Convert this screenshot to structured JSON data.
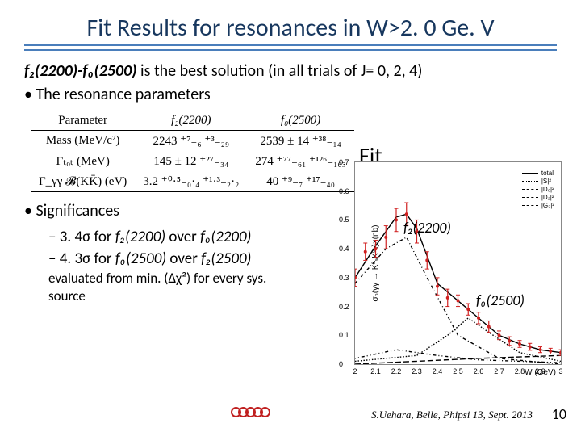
{
  "title": "Fit Results for resonances in W>2. 0 Ge. V",
  "intro_prefix_html": "f₂(2200)-f₀(2500)",
  "intro_rest": " is the best solution (in all  trials of J= 0, 2, 4)",
  "bullet_params": "The resonance parameters",
  "param_table": {
    "columns": [
      "Parameter",
      "f₂(2200)",
      "f₀(2500)"
    ],
    "rows": [
      [
        "Mass (MeV/c²)",
        "2243 ⁺⁷₋₆ ⁺³₋₂₉",
        "2539 ± 14 ⁺³⁸₋₁₄"
      ],
      [
        "Γₜₒₜ (MeV)",
        "145 ± 12 ⁺²⁷₋₃₄",
        "274 ⁺⁷⁷₋₆₁ ⁺¹²⁶₋₁₆₃"
      ],
      [
        "Γ_γγ 𝓑(KK̄) (eV)",
        "3.2 ⁺⁰·⁵₋₀·₄ ⁺¹·³₋₂·₂",
        "40 ⁺⁹₋₇ ⁺¹⁷₋₄₀"
      ]
    ]
  },
  "fit_label": "Fit",
  "sig_title": "Significances",
  "sig_line1_pre": "3. 4σ for ",
  "sig_line1_resA": "f₂(2200)",
  "sig_line1_mid": " over ",
  "sig_line1_resB": "f₀(2200)",
  "sig_line2_pre": "4. 3σ for ",
  "sig_line2_resA": "f₀(2500)",
  "sig_line2_mid": " over ",
  "sig_line2_resB": "f₂(2500)",
  "sig_note_a": "evaluated from min. (Δχ²)  for every sys.",
  "sig_note_b": "source",
  "chart": {
    "xmin": 2.0,
    "xmax": 3.0,
    "ymin": 0.0,
    "ymax": 0.7,
    "xticks": [
      "2",
      "2.1",
      "2.2",
      "2.3",
      "2.4",
      "2.5",
      "2.6",
      "2.7",
      "2.8",
      "2.9",
      "3"
    ],
    "yticks": [
      "0",
      "0.1",
      "0.2",
      "0.3",
      "0.4",
      "0.5",
      "0.6",
      "0.7"
    ],
    "xlabel": "W (GeV)",
    "ylabel": "σ₀(γγ → K⁰ₛK⁰ₛ)×(nb)",
    "legend": [
      {
        "label": "total",
        "style": "solid",
        "color": "#000"
      },
      {
        "label": "|S|²",
        "style": "dotted",
        "color": "#000"
      },
      {
        "label": "|D₀|²",
        "style": "dash1",
        "color": "#000"
      },
      {
        "label": "|D₂|²",
        "style": "dash2",
        "color": "#000"
      },
      {
        "label": "|G₂|²",
        "style": "longdash",
        "color": "#000"
      }
    ],
    "data_points": [
      {
        "x": 2.0,
        "y": 0.3,
        "ey": 0.03
      },
      {
        "x": 2.05,
        "y": 0.39,
        "ey": 0.03
      },
      {
        "x": 2.1,
        "y": 0.4,
        "ey": 0.03
      },
      {
        "x": 2.15,
        "y": 0.44,
        "ey": 0.04
      },
      {
        "x": 2.2,
        "y": 0.5,
        "ey": 0.04
      },
      {
        "x": 2.25,
        "y": 0.52,
        "ey": 0.04
      },
      {
        "x": 2.3,
        "y": 0.46,
        "ey": 0.04
      },
      {
        "x": 2.35,
        "y": 0.36,
        "ey": 0.03
      },
      {
        "x": 2.4,
        "y": 0.27,
        "ey": 0.03
      },
      {
        "x": 2.45,
        "y": 0.23,
        "ey": 0.03
      },
      {
        "x": 2.5,
        "y": 0.22,
        "ey": 0.02
      },
      {
        "x": 2.55,
        "y": 0.19,
        "ey": 0.02
      },
      {
        "x": 2.6,
        "y": 0.16,
        "ey": 0.02
      },
      {
        "x": 2.65,
        "y": 0.13,
        "ey": 0.02
      },
      {
        "x": 2.7,
        "y": 0.1,
        "ey": 0.015
      },
      {
        "x": 2.75,
        "y": 0.08,
        "ey": 0.015
      },
      {
        "x": 2.8,
        "y": 0.07,
        "ey": 0.012
      },
      {
        "x": 2.85,
        "y": 0.06,
        "ey": 0.012
      },
      {
        "x": 2.9,
        "y": 0.05,
        "ey": 0.01
      },
      {
        "x": 2.95,
        "y": 0.045,
        "ey": 0.01
      },
      {
        "x": 3.0,
        "y": 0.04,
        "ey": 0.01
      }
    ],
    "curve_total": [
      {
        "x": 2.0,
        "y": 0.3
      },
      {
        "x": 2.1,
        "y": 0.41
      },
      {
        "x": 2.2,
        "y": 0.51
      },
      {
        "x": 2.25,
        "y": 0.52
      },
      {
        "x": 2.3,
        "y": 0.47
      },
      {
        "x": 2.4,
        "y": 0.28
      },
      {
        "x": 2.5,
        "y": 0.22
      },
      {
        "x": 2.6,
        "y": 0.16
      },
      {
        "x": 2.7,
        "y": 0.1
      },
      {
        "x": 2.8,
        "y": 0.07
      },
      {
        "x": 2.9,
        "y": 0.05
      },
      {
        "x": 3.0,
        "y": 0.04
      }
    ],
    "curve_S": [
      {
        "x": 2.0,
        "y": 0.01
      },
      {
        "x": 2.3,
        "y": 0.03
      },
      {
        "x": 2.45,
        "y": 0.1
      },
      {
        "x": 2.55,
        "y": 0.16
      },
      {
        "x": 2.65,
        "y": 0.11
      },
      {
        "x": 2.8,
        "y": 0.04
      },
      {
        "x": 3.0,
        "y": 0.01
      }
    ],
    "curve_D0": [
      {
        "x": 2.0,
        "y": 0.28
      },
      {
        "x": 2.15,
        "y": 0.4
      },
      {
        "x": 2.25,
        "y": 0.44
      },
      {
        "x": 2.35,
        "y": 0.3
      },
      {
        "x": 2.5,
        "y": 0.1
      },
      {
        "x": 2.7,
        "y": 0.02
      },
      {
        "x": 3.0,
        "y": 0.0
      }
    ],
    "curve_D2": [
      {
        "x": 2.0,
        "y": 0.02
      },
      {
        "x": 2.2,
        "y": 0.05
      },
      {
        "x": 2.4,
        "y": 0.03
      },
      {
        "x": 2.6,
        "y": 0.015
      },
      {
        "x": 3.0,
        "y": 0.005
      }
    ],
    "curve_G2": [
      {
        "x": 2.0,
        "y": 0.0
      },
      {
        "x": 2.3,
        "y": 0.01
      },
      {
        "x": 2.6,
        "y": 0.02
      },
      {
        "x": 3.0,
        "y": 0.03
      }
    ]
  },
  "annot_f2": "f₂(2200)",
  "annot_f0": "f₀(2500)",
  "footer": "S.Uehara, Belle, Phipsi 13, Sept. 2013",
  "page_number": "10",
  "colors": {
    "title": "#17375e",
    "underline": "#4a7ebb",
    "data_point": "#d02020",
    "logo_ring": "#c02020"
  }
}
